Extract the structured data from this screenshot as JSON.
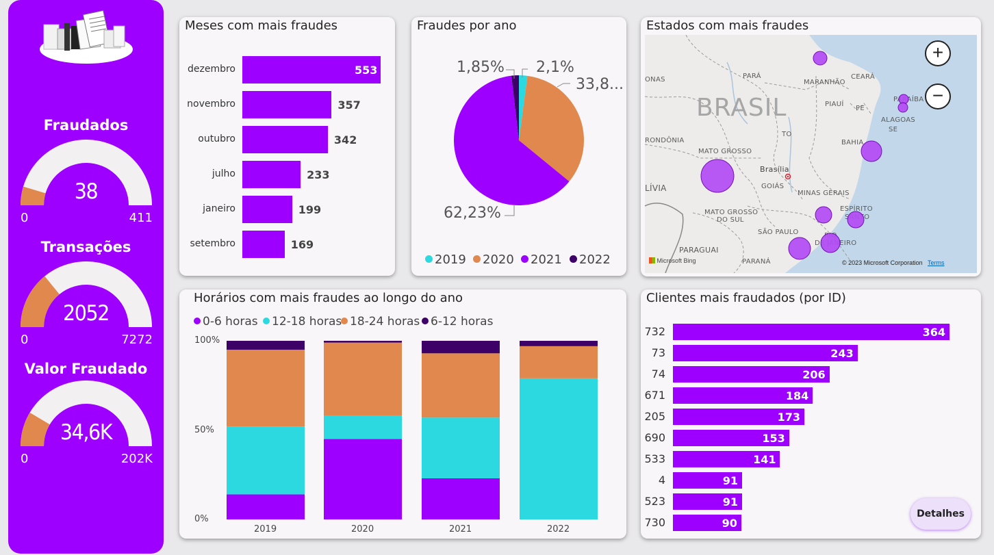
{
  "colors": {
    "purple": "#9d00ff",
    "orange": "#e0884e",
    "cyan": "#2dd9e0",
    "dark_purple": "#3c0066",
    "gauge_track": "#f2f0f0",
    "bubble": "#b44cf5"
  },
  "kpis": [
    {
      "title": "Fraudados",
      "value": "38",
      "min": "0",
      "max": "411",
      "fill_fraction": 0.092
    },
    {
      "title": "Transações",
      "value": "2052",
      "min": "0",
      "max": "7272",
      "fill_fraction": 0.282
    },
    {
      "title": "Valor Fraudado",
      "value": "34,6K",
      "min": "0",
      "max": "202K",
      "fill_fraction": 0.171
    }
  ],
  "months_chart": {
    "title": "Meses com mais fraudes",
    "chart_data": {
      "type": "bar",
      "orientation": "horizontal",
      "categories": [
        "dezembro",
        "novembro",
        "outubro",
        "julho",
        "janeiro",
        "setembro"
      ],
      "values": [
        553,
        357,
        342,
        233,
        199,
        169
      ],
      "labels": [
        "553",
        "357",
        "342",
        "233",
        "199",
        "169"
      ]
    }
  },
  "pie_chart": {
    "title": "Fraudes por ano",
    "chart_data": {
      "type": "pie",
      "categories": [
        "2019",
        "2020",
        "2021",
        "2022"
      ],
      "values": [
        2.1,
        33.8,
        62.23,
        1.85
      ],
      "labels": [
        "2,1%",
        "33,8...",
        "62,23%",
        "1,85%"
      ],
      "legend": "bottom"
    }
  },
  "map": {
    "title": "Estados com mais fraudes",
    "labels": {
      "brasil": "BRASIL",
      "para": "PARÁ",
      "maranhao": "MARANHÃO",
      "ceara": "CEARÁ",
      "piaui": "PIAUÍ",
      "paraiba": "PARAÍBA",
      "pe": "PE",
      "alagoas": "ALAGOAS",
      "se": "SE",
      "to": "TO",
      "bahia": "BAHIA",
      "rondonia": "RONDÔNIA",
      "mato_grosso": "MATO GROSSO",
      "brasilia": "Brasília",
      "goias": "GOIÁS",
      "minas": "MINAS GERAIS",
      "espirito": "ESPÍRITO",
      "santo": "SANTO",
      "ms1": "MATO GROSSO",
      "ms2": "DO SUL",
      "sao_paulo": "SÃO PAULO",
      "rio1": "RIO",
      "rio2": "DE JANEIRO",
      "paraguai": "PARAGUAI",
      "parana": "PARANÁ",
      "bolivia": "LÍVIA",
      "onas": "ONAS"
    },
    "zoom_in": "+",
    "zoom_out": "−",
    "bing": "Microsoft Bing",
    "copyright": "© 2023 Microsoft Corporation",
    "terms": "Terms"
  },
  "hours_chart": {
    "title": "Horários com mais fraudes ao longo do ano",
    "chart_data": {
      "type": "bar",
      "stacked": "100%",
      "categories": [
        "2019",
        "2020",
        "2021",
        "2022"
      ],
      "series": [
        {
          "name": "0-6 horas",
          "color": "#9d00ff",
          "values": [
            14,
            45,
            23,
            0
          ]
        },
        {
          "name": "12-18 horas",
          "color": "#2dd9e0",
          "values": [
            38,
            13,
            34,
            79
          ]
        },
        {
          "name": "18-24 horas",
          "color": "#e0884e",
          "values": [
            43,
            41,
            36,
            18
          ]
        },
        {
          "name": "6-12 horas",
          "color": "#3c0066",
          "values": [
            5,
            1,
            7,
            3
          ]
        }
      ],
      "y_ticks": [
        "100%",
        "50%",
        "0%"
      ],
      "ylim": [
        0,
        100
      ],
      "legend": "top-left"
    }
  },
  "clients_chart": {
    "title": "Clientes mais fraudados (por ID)",
    "chart_data": {
      "type": "bar",
      "orientation": "horizontal",
      "categories": [
        "732",
        "73",
        "74",
        "671",
        "205",
        "690",
        "533",
        "4",
        "523",
        "730"
      ],
      "values": [
        364,
        243,
        206,
        184,
        173,
        153,
        141,
        91,
        91,
        90
      ],
      "labels": [
        "364",
        "243",
        "206",
        "184",
        "173",
        "153",
        "141",
        "91",
        "91",
        "90"
      ]
    },
    "details_button": "Detalhes"
  }
}
